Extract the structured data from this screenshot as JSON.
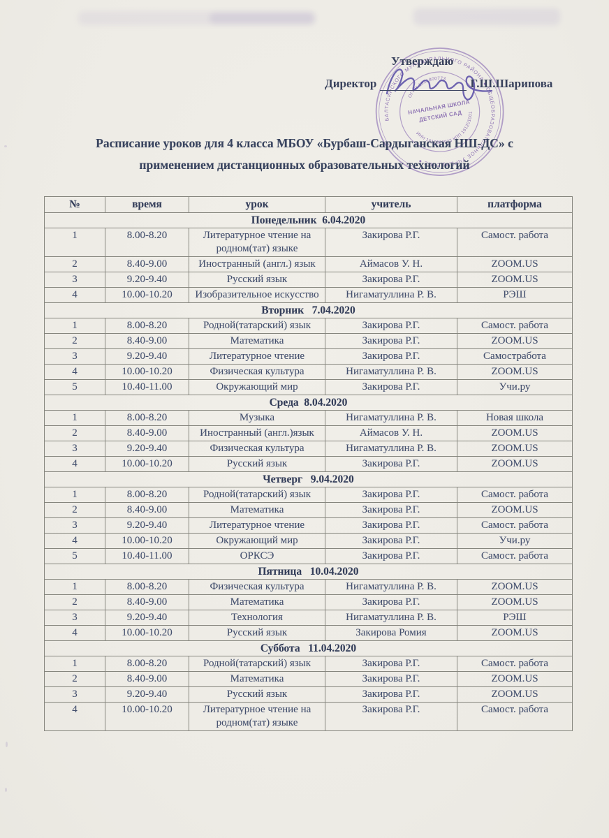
{
  "colors": {
    "paper": "#efede8",
    "ink": "#44506e",
    "heading_ink": "#333d59",
    "stamp_purple": "#8a6bb2",
    "signature_purple": "#564aa5",
    "table_border": "#85857d"
  },
  "header": {
    "approve_label": "Утверждаю",
    "director_label": "Директор",
    "director_name": "Г.Ш.Шарипова"
  },
  "stamp": {
    "ring_text": "БАЛТАСИНСКОГО МУНИЦИПАЛЬНОГО РАЙОНА ● ОБЩЕОБРАЗОВАТЕЛЬНОЕ УЧРЕЖДЕНИЕ ●",
    "ogrn": "ОГРН 1021800773",
    "center_line1": "НАЧАЛЬНАЯ ШКОЛА",
    "center_line2": "ДЕТСКИЙ САД",
    "inn_kpp": "ИНН 1612003923  КПП 161201001"
  },
  "title": {
    "line1": "Расписание уроков для 4 класса МБОУ «Бурбаш-Сардыганская НШ-ДС» с",
    "line2": "применением дистанционных образовательных технологий"
  },
  "table": {
    "headers": [
      "№",
      "время",
      "урок",
      "учитель",
      "платформа"
    ],
    "days": [
      {
        "title": "Понедельник  6.04.2020",
        "rows": [
          {
            "num": "1",
            "time": "8.00-8.20",
            "lesson": "Литературное чтение на родном(тат) языке",
            "teacher": "Закирова Р.Г.",
            "platform": "Самост. работа"
          },
          {
            "num": "2",
            "time": "8.40-9.00",
            "lesson": "Иностранный (англ.) язык",
            "teacher": "Аймасов У. Н.",
            "platform": "ZOOM.US"
          },
          {
            "num": "3",
            "time": "9.20-9.40",
            "lesson": "Русский язык",
            "teacher": "Закирова Р.Г.",
            "platform": "ZOOM.US"
          },
          {
            "num": "4",
            "time": "10.00-10.20",
            "lesson": "Изобразительное искусство",
            "teacher": "Нигаматуллина Р. В.",
            "platform": "РЭШ"
          }
        ]
      },
      {
        "title": "Вторник   7.04.2020",
        "rows": [
          {
            "num": "1",
            "time": "8.00-8.20",
            "lesson": "Родной(татарский) язык",
            "teacher": "Закирова Р.Г.",
            "platform": "Самост. работа"
          },
          {
            "num": "2",
            "time": "8.40-9.00",
            "lesson": "Математика",
            "teacher": "Закирова Р.Г.",
            "platform": "ZOOM.US"
          },
          {
            "num": "3",
            "time": "9.20-9.40",
            "lesson": "Литературное чтение",
            "teacher": "Закирова Р.Г.",
            "platform": "Самостработа"
          },
          {
            "num": "4",
            "time": "10.00-10.20",
            "lesson": "Физическая культура",
            "teacher": "Нигаматуллина Р. В.",
            "platform": "ZOOM.US"
          },
          {
            "num": "5",
            "time": "10.40-11.00",
            "lesson": "Окружающий мир",
            "teacher": "Закирова Р.Г.",
            "platform": "Учи.ру"
          }
        ]
      },
      {
        "title": "Среда  8.04.2020",
        "rows": [
          {
            "num": "1",
            "time": "8.00-8.20",
            "lesson": "Музыка",
            "teacher": "Нигаматуллина Р. В.",
            "platform": "Новая школа"
          },
          {
            "num": "2",
            "time": "8.40-9.00",
            "lesson": "Иностранный (англ.)язык",
            "teacher": "Аймасов У. Н.",
            "platform": "ZOOM.US"
          },
          {
            "num": "3",
            "time": "9.20-9.40",
            "lesson": "Физическая культура",
            "teacher": "Нигаматуллина Р. В.",
            "platform": "ZOOM.US"
          },
          {
            "num": "4",
            "time": "10.00-10.20",
            "lesson": "Русский язык",
            "teacher": "Закирова Р.Г.",
            "platform": "ZOOM.US"
          }
        ]
      },
      {
        "title": "Четверг   9.04.2020",
        "rows": [
          {
            "num": "1",
            "time": "8.00-8.20",
            "lesson": "Родной(татарский) язык",
            "teacher": "Закирова Р.Г.",
            "platform": "Самост. работа"
          },
          {
            "num": "2",
            "time": "8.40-9.00",
            "lesson": "Математика",
            "teacher": "Закирова Р.Г.",
            "platform": "ZOOM.US"
          },
          {
            "num": "3",
            "time": "9.20-9.40",
            "lesson": "Литературное чтение",
            "teacher": "Закирова Р.Г.",
            "platform": "Самост. работа"
          },
          {
            "num": "4",
            "time": "10.00-10.20",
            "lesson": "Окружающий мир",
            "teacher": "Закирова Р.Г.",
            "platform": "Учи.ру"
          },
          {
            "num": "5",
            "time": "10.40-11.00",
            "lesson": "ОРКСЭ",
            "teacher": "Закирова Р.Г.",
            "platform": "Самост. работа"
          }
        ]
      },
      {
        "title": "Пятница   10.04.2020",
        "rows": [
          {
            "num": "1",
            "time": "8.00-8.20",
            "lesson": "Физическая культура",
            "teacher": "Нигаматуллина Р. В.",
            "platform": "ZOOM.US"
          },
          {
            "num": "2",
            "time": "8.40-9.00",
            "lesson": "Математика",
            "teacher": "Закирова Р.Г.",
            "platform": "ZOOM.US"
          },
          {
            "num": "3",
            "time": "9.20-9.40",
            "lesson": "Технология",
            "teacher": "Нигаматуллина Р. В.",
            "platform": "РЭШ"
          },
          {
            "num": "4",
            "time": "10.00-10.20",
            "lesson": "Русский язык",
            "teacher": "Закирова Ромия",
            "platform": "ZOOM.US"
          }
        ]
      },
      {
        "title": "Суббота   11.04.2020",
        "rows": [
          {
            "num": "1",
            "time": "8.00-8.20",
            "lesson": "Родной(татарский) язык",
            "teacher": "Закирова Р.Г.",
            "platform": "Самост. работа"
          },
          {
            "num": "2",
            "time": "8.40-9.00",
            "lesson": "Математика",
            "teacher": "Закирова Р.Г.",
            "platform": "ZOOM.US"
          },
          {
            "num": "3",
            "time": "9.20-9.40",
            "lesson": "Русский язык",
            "teacher": "Закирова Р.Г.",
            "platform": "ZOOM.US"
          },
          {
            "num": "4",
            "time": "10.00-10.20",
            "lesson": "Литературное чтение на родном(тат) языке",
            "teacher": "Закирова Р.Г.",
            "platform": "Самост. работа"
          }
        ]
      }
    ]
  }
}
